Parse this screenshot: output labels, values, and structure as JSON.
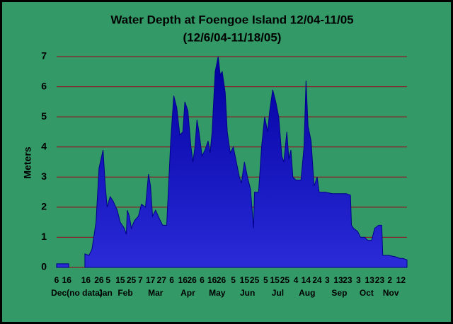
{
  "chart_data": {
    "type": "area",
    "title": "Water Depth at Foengoe Island 12/04-11/05",
    "subtitle": "(12/6/04-11/18/05)",
    "y_label": "Meters",
    "color": "#00008b",
    "grid": true,
    "grid_color": "#a0001a",
    "xlim": [
      0,
      347
    ],
    "ylim": [
      0,
      7
    ],
    "yticks": [
      0,
      1,
      2,
      3,
      4,
      5,
      6,
      7
    ],
    "xticks": [
      {
        "value": 0,
        "label": "6"
      },
      {
        "value": 10,
        "label": "16"
      },
      {
        "value": 29,
        "label": "16"
      },
      {
        "value": 42,
        "label": "26"
      },
      {
        "value": 51,
        "label": "5"
      },
      {
        "value": 63,
        "label": "15"
      },
      {
        "value": 74,
        "label": "25"
      },
      {
        "value": 83,
        "label": "7"
      },
      {
        "value": 93,
        "label": "17"
      },
      {
        "value": 104,
        "label": "27"
      },
      {
        "value": 114,
        "label": "6"
      },
      {
        "value": 125,
        "label": "16"
      },
      {
        "value": 134,
        "label": "26"
      },
      {
        "value": 144,
        "label": "6"
      },
      {
        "value": 154,
        "label": "16"
      },
      {
        "value": 163,
        "label": "26"
      },
      {
        "value": 175,
        "label": "5"
      },
      {
        "value": 186,
        "label": "15"
      },
      {
        "value": 196,
        "label": "25"
      },
      {
        "value": 207,
        "label": "5"
      },
      {
        "value": 216,
        "label": "15"
      },
      {
        "value": 226,
        "label": "25"
      },
      {
        "value": 237,
        "label": "4"
      },
      {
        "value": 247,
        "label": "14"
      },
      {
        "value": 258,
        "label": "24"
      },
      {
        "value": 268,
        "label": "3"
      },
      {
        "value": 279,
        "label": "13"
      },
      {
        "value": 288,
        "label": "23"
      },
      {
        "value": 299,
        "label": "3"
      },
      {
        "value": 310,
        "label": "13"
      },
      {
        "value": 320,
        "label": "23"
      },
      {
        "value": 330,
        "label": "2"
      },
      {
        "value": 341,
        "label": "12"
      }
    ],
    "month_labels": [
      {
        "value": 20,
        "label": "Dec(no data)"
      },
      {
        "value": 48,
        "label": "Jan"
      },
      {
        "value": 68,
        "label": "Feb"
      },
      {
        "value": 98,
        "label": "Mar"
      },
      {
        "value": 130,
        "label": "Apr"
      },
      {
        "value": 159,
        "label": "May"
      },
      {
        "value": 189,
        "label": "Jun"
      },
      {
        "value": 219,
        "label": "Jul"
      },
      {
        "value": 248,
        "label": "Aug"
      },
      {
        "value": 280,
        "label": "Sep"
      },
      {
        "value": 307,
        "label": "Oct"
      },
      {
        "value": 331,
        "label": "Nov"
      }
    ],
    "x": [
      0,
      12,
      20,
      28,
      32,
      35,
      39,
      42,
      46,
      48,
      50,
      53,
      56,
      60,
      63,
      67,
      69,
      70,
      72,
      74,
      77,
      81,
      84,
      88,
      91,
      93,
      95,
      98,
      102,
      105,
      109,
      111,
      113,
      116,
      119,
      122,
      125,
      127,
      130,
      133,
      135,
      137,
      139,
      141,
      144,
      147,
      150,
      152,
      154,
      157,
      160,
      162,
      164,
      167,
      169,
      172,
      175,
      178,
      181,
      183,
      186,
      189,
      192,
      195,
      196,
      200,
      203,
      206,
      209,
      211,
      214,
      217,
      220,
      223,
      225,
      228,
      230,
      232,
      234,
      237,
      239,
      242,
      245,
      247,
      249,
      252,
      255,
      258,
      260,
      266,
      273,
      280,
      287,
      291,
      292,
      294,
      298,
      301,
      305,
      308,
      312,
      315,
      319,
      322,
      323,
      329,
      336,
      340,
      343,
      347
    ],
    "values": [
      0.12,
      0.12,
      null,
      0.45,
      0.4,
      0.6,
      1.5,
      3.3,
      3.9,
      2.8,
      2.0,
      2.35,
      2.2,
      1.9,
      1.5,
      1.3,
      1.1,
      1.9,
      1.7,
      1.3,
      1.55,
      1.7,
      2.1,
      2.0,
      3.1,
      2.7,
      1.7,
      1.9,
      1.6,
      1.4,
      1.4,
      2.8,
      4.2,
      5.7,
      5.3,
      4.4,
      4.5,
      5.5,
      5.2,
      4.0,
      3.5,
      4.0,
      4.9,
      4.5,
      3.7,
      3.9,
      4.2,
      3.8,
      4.5,
      6.5,
      7.0,
      6.4,
      6.5,
      5.8,
      4.5,
      3.8,
      4.0,
      3.5,
      3.0,
      2.8,
      3.5,
      3.0,
      2.6,
      1.3,
      2.5,
      2.5,
      4.0,
      5.0,
      4.5,
      5.2,
      5.9,
      5.5,
      5.0,
      3.7,
      3.5,
      4.5,
      3.6,
      3.9,
      3.0,
      2.9,
      2.9,
      2.9,
      4.0,
      6.2,
      4.7,
      4.2,
      2.7,
      3.0,
      2.5,
      2.5,
      2.45,
      2.45,
      2.45,
      2.4,
      1.4,
      1.3,
      1.2,
      1.0,
      1.0,
      0.9,
      0.9,
      1.3,
      1.4,
      1.4,
      0.4,
      0.4,
      0.35,
      0.3,
      0.3,
      0.25
    ]
  }
}
